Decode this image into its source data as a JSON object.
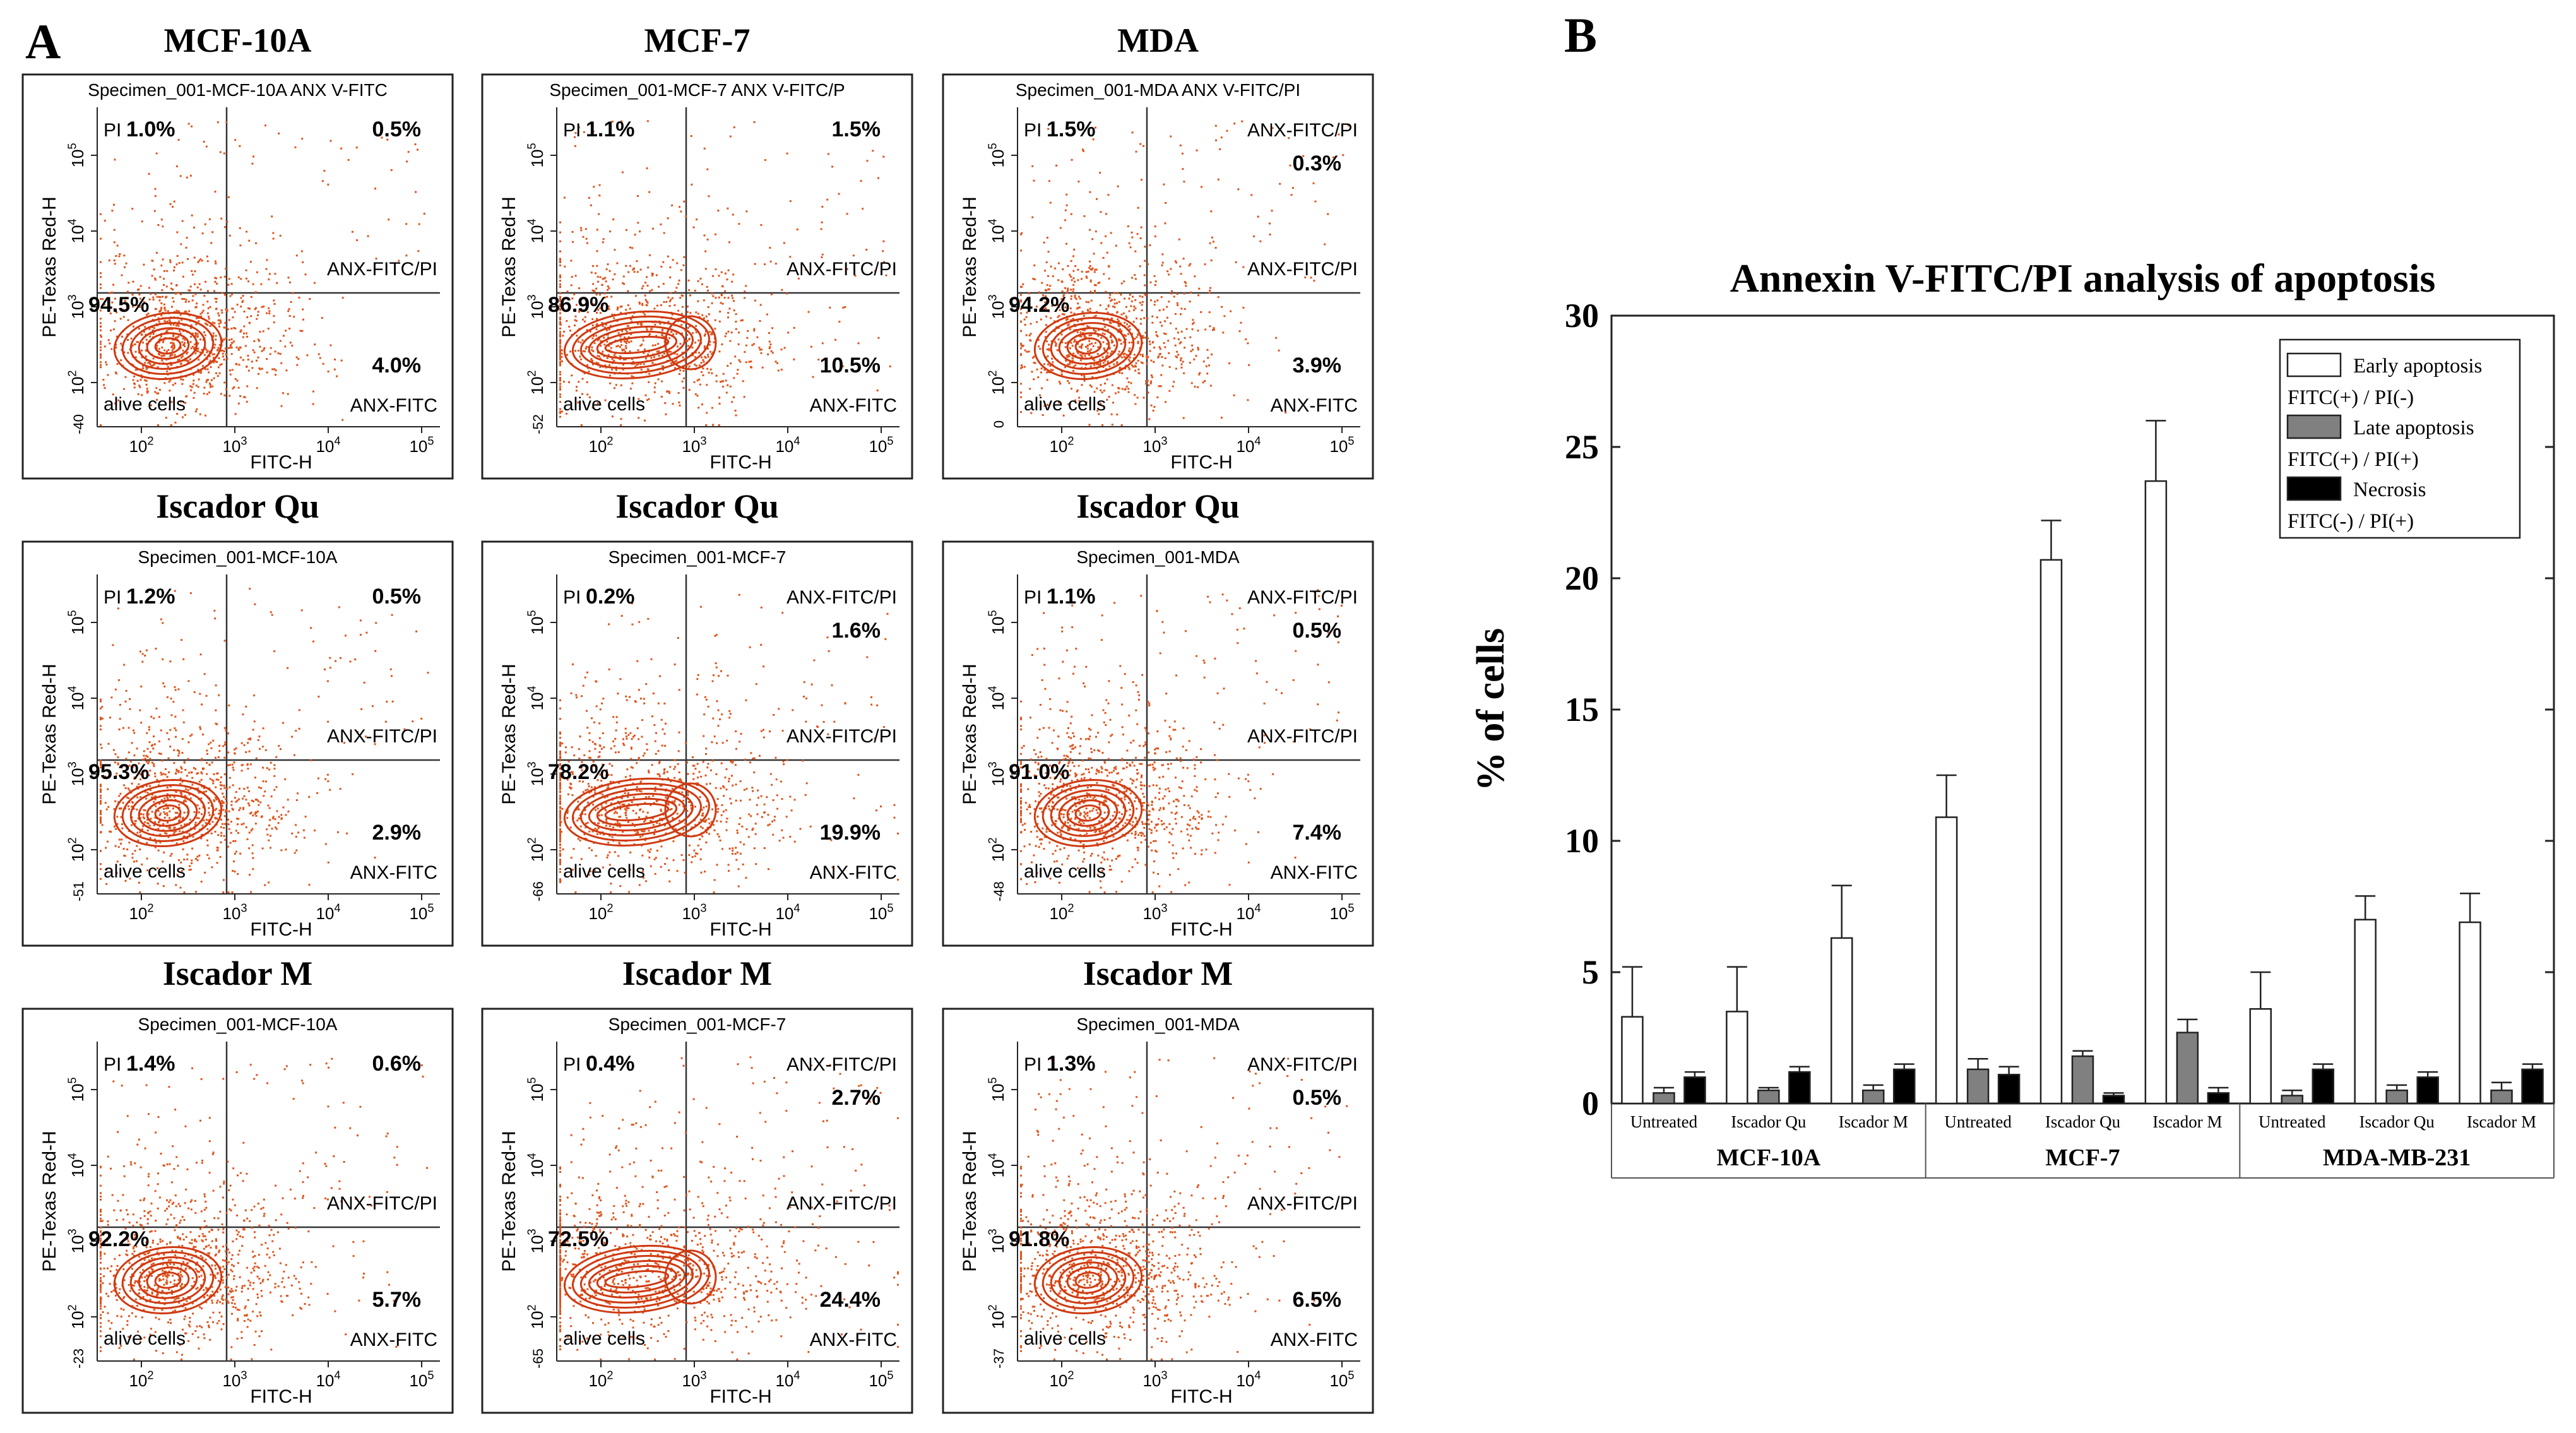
{
  "panel_labels": {
    "a": "A",
    "b": "B"
  },
  "flow": {
    "axis_y_label": "PE-Texas Red-H",
    "axis_x_label": "FITC-H",
    "x_ticks": [
      "10^2",
      "10^3",
      "10^4",
      "10^5"
    ],
    "y_ticks": [
      "10^2",
      "10^3",
      "10^4",
      "10^5"
    ],
    "quad_label_ul": "PI",
    "quad_label_ll": "alive cells",
    "quad_label_lr": "ANX-FITC",
    "quad_label_mid": "ANX-FITC/PI",
    "column_titles": [
      "MCF-10A",
      "MCF-7",
      "MDA"
    ],
    "plots": [
      {
        "row": 0,
        "col": 0,
        "title": "MCF-10A",
        "specimen": "Specimen_001-MCF-10A  ANX V-FITC",
        "ur_label": "",
        "y_min": "-40",
        "pct_pi": "1.0%",
        "pct_ur": "0.5%",
        "pct_alive": "94.5%",
        "pct_lr": "4.0%"
      },
      {
        "row": 0,
        "col": 1,
        "title": "MCF-7",
        "specimen": "Specimen_001-MCF-7  ANX V-FITC/P",
        "ur_label": "",
        "y_min": "-52",
        "pct_pi": "1.1%",
        "pct_ur": "1.5%",
        "pct_alive": "86.9%",
        "pct_lr": "10.5%"
      },
      {
        "row": 0,
        "col": 2,
        "title": "MDA",
        "specimen": "Specimen_001-MDA  ANX V-FITC/PI",
        "ur_label": "ANX-FITC/PI",
        "y_min": "0",
        "pct_pi": "1.5%",
        "pct_ur": "0.3%",
        "pct_alive": "94.2%",
        "pct_lr": "3.9%"
      },
      {
        "row": 1,
        "col": 0,
        "title": "Iscador Qu",
        "specimen": "Specimen_001-MCF-10A",
        "ur_label": "",
        "y_min": "-51",
        "pct_pi": "1.2%",
        "pct_ur": "0.5%",
        "pct_alive": "95.3%",
        "pct_lr": "2.9%"
      },
      {
        "row": 1,
        "col": 1,
        "title": "Iscador Qu",
        "specimen": "Specimen_001-MCF-7",
        "ur_label": "ANX-FITC/PI",
        "y_min": "-66",
        "pct_pi": "0.2%",
        "pct_ur": "1.6%",
        "pct_alive": "78.2%",
        "pct_lr": "19.9%"
      },
      {
        "row": 1,
        "col": 2,
        "title": "Iscador Qu",
        "specimen": "Specimen_001-MDA",
        "ur_label": "ANX-FITC/PI",
        "y_min": "-48",
        "pct_pi": "1.1%",
        "pct_ur": "0.5%",
        "pct_alive": "91.0%",
        "pct_lr": "7.4%"
      },
      {
        "row": 2,
        "col": 0,
        "title": "Iscador M",
        "specimen": "Specimen_001-MCF-10A",
        "ur_label": "",
        "y_min": "-23",
        "pct_pi": "1.4%",
        "pct_ur": "0.6%",
        "pct_alive": "92.2%",
        "pct_lr": "5.7%"
      },
      {
        "row": 2,
        "col": 1,
        "title": "Iscador M",
        "specimen": "Specimen_001-MCF-7",
        "ur_label": "ANX-FITC/PI",
        "y_min": "-65",
        "pct_pi": "0.4%",
        "pct_ur": "2.7%",
        "pct_alive": "72.5%",
        "pct_lr": "24.4%"
      },
      {
        "row": 2,
        "col": 2,
        "title": "Iscador M",
        "specimen": "Specimen_001-MDA",
        "ur_label": "ANX-FITC/PI",
        "y_min": "-37",
        "pct_pi": "1.3%",
        "pct_ur": "0.5%",
        "pct_alive": "91.8%",
        "pct_lr": "6.5%"
      }
    ]
  },
  "colors": {
    "dots": "#e0541c",
    "contour": "#cf3a12",
    "contour_fill": "#ffffff",
    "early": "#ffffff",
    "late": "#808080",
    "necrosis": "#000000"
  },
  "chart_data": {
    "type": "bar",
    "title": "Annexin V-FITC/PI analysis of apoptosis",
    "ylabel": "% of cells",
    "xlabel": "",
    "ylim": [
      0,
      30
    ],
    "yticks": [
      0,
      5,
      10,
      15,
      20,
      25,
      30
    ],
    "groups": [
      "MCF-10A",
      "MCF-7",
      "MDA-MB-231"
    ],
    "categories": [
      "Untreated",
      "Iscador Qu",
      "Iscador M",
      "Untreated",
      "Iscador Qu",
      "Iscador M",
      "Untreated",
      "Iscador Qu",
      "Iscador M"
    ],
    "series": [
      {
        "name": "Early apoptosis",
        "sub": "FITC(+) / PI(-)",
        "values": [
          3.3,
          3.5,
          6.3,
          10.9,
          20.7,
          23.7,
          3.6,
          7.0,
          6.9
        ],
        "errors": [
          1.9,
          1.7,
          2.0,
          1.6,
          1.5,
          2.3,
          1.4,
          0.9,
          1.1
        ]
      },
      {
        "name": "Late apoptosis",
        "sub": "FITC(+) / PI(+)",
        "values": [
          0.4,
          0.5,
          0.5,
          1.3,
          1.8,
          2.7,
          0.3,
          0.5,
          0.5
        ],
        "errors": [
          0.2,
          0.1,
          0.2,
          0.4,
          0.2,
          0.5,
          0.2,
          0.2,
          0.3
        ]
      },
      {
        "name": "Necrosis",
        "sub": "FITC(-) / PI(+)",
        "values": [
          1.0,
          1.2,
          1.3,
          1.1,
          0.3,
          0.4,
          1.3,
          1.0,
          1.3
        ],
        "errors": [
          0.2,
          0.2,
          0.2,
          0.3,
          0.1,
          0.2,
          0.2,
          0.2,
          0.2
        ]
      }
    ],
    "legend": "top-right"
  }
}
